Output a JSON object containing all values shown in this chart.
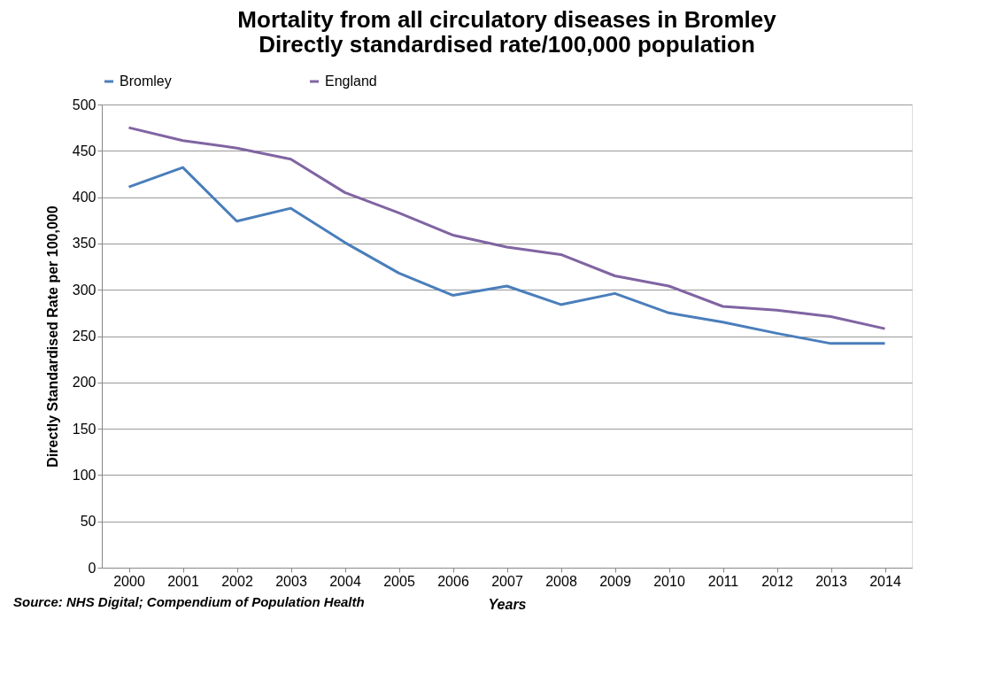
{
  "chart_data": {
    "type": "line",
    "title": "Mortality from all circulatory diseases in Bromley\nDirectly standardised rate/100,000 population",
    "xlabel": "Years",
    "ylabel": "Directly Standardised Rate per 100,000",
    "categories": [
      "2000",
      "2001",
      "2002",
      "2003",
      "2004",
      "2005",
      "2006",
      "2007",
      "2008",
      "2009",
      "2010",
      "2011",
      "2012",
      "2013",
      "2014"
    ],
    "series": [
      {
        "name": "Bromley",
        "color": "#4a7ebb",
        "values": [
          411,
          432,
          374,
          388,
          351,
          318,
          294,
          304,
          284,
          296,
          275,
          265,
          253,
          242,
          242
        ]
      },
      {
        "name": "England",
        "color": "#8064a2",
        "values": [
          475,
          461,
          453,
          441,
          405,
          383,
          359,
          346,
          338,
          315,
          304,
          282,
          278,
          271,
          258
        ]
      }
    ],
    "ylim": [
      0,
      500
    ],
    "yticks": [
      0,
      50,
      100,
      150,
      200,
      250,
      300,
      350,
      400,
      450,
      500
    ],
    "grid": "y",
    "legend": "top",
    "marker": "none",
    "line_style": "solid",
    "annotations": [
      "Source: NHS Digital; Compendium of Population Health"
    ]
  }
}
